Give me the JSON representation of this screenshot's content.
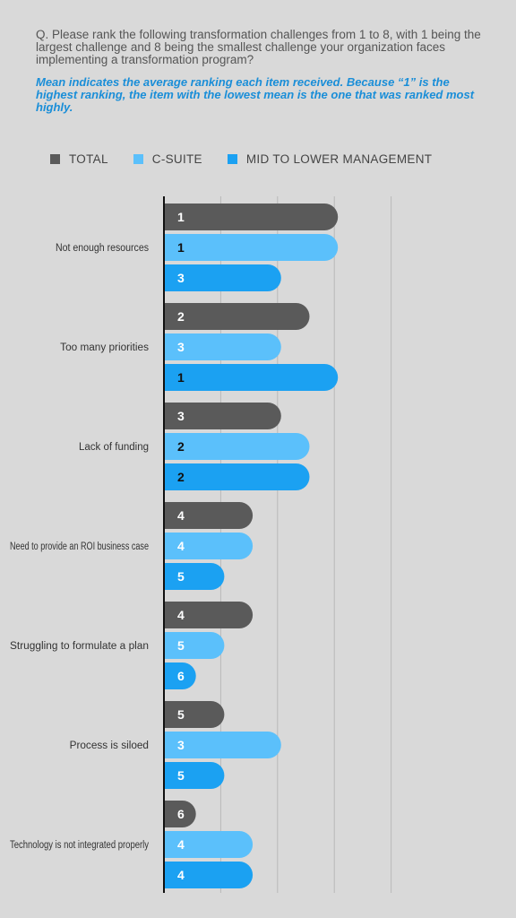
{
  "question": "Q. Please rank the following transformation challenges from 1 to 8, with 1 being the largest challenge and 8 being the smallest challenge your organization faces implementing a transformation program?",
  "note": "Mean indicates the average ranking each item received. Because “1” is the highest ranking, the item with the lowest mean is the one that was ranked most highly.",
  "colors": {
    "background": "#d9d9d9",
    "total": "#5a5a5a",
    "csuite": "#5bc0fb",
    "mid": "#1ba1f2",
    "gridline": "#b8b8b8",
    "axis": "#111111"
  },
  "chart_data": {
    "type": "bar",
    "orientation": "horizontal",
    "categories": [
      "Not enough resources",
      "Too many priorities",
      "Lack of funding",
      "Need to provide an ROI business case",
      "Struggling to formulate a plan",
      "Process is siloed",
      "Technology is not integrated properly"
    ],
    "series": [
      {
        "name": "TOTAL",
        "color": "#5a5a5a",
        "label_color": "#ffffff",
        "values": [
          1,
          2,
          3,
          4,
          4,
          5,
          6
        ]
      },
      {
        "name": "C-SUITE",
        "color": "#5bc0fb",
        "label_color": "#ffffff",
        "values": [
          1,
          3,
          2,
          4,
          5,
          3,
          4
        ]
      },
      {
        "name": "MID TO LOWER MANAGEMENT",
        "color": "#1ba1f2",
        "label_color": "#ffffff",
        "values": [
          3,
          1,
          2,
          5,
          6,
          5,
          4
        ]
      }
    ],
    "label_color_overrides": [
      {
        "series": 1,
        "index": 0,
        "color": "#111111"
      },
      {
        "series": 1,
        "index": 2,
        "color": "#111111"
      },
      {
        "series": 2,
        "index": 1,
        "color": "#111111"
      },
      {
        "series": 2,
        "index": 2,
        "color": "#111111"
      }
    ],
    "legend_position": "top",
    "grid": true,
    "gridlines": 4
  }
}
